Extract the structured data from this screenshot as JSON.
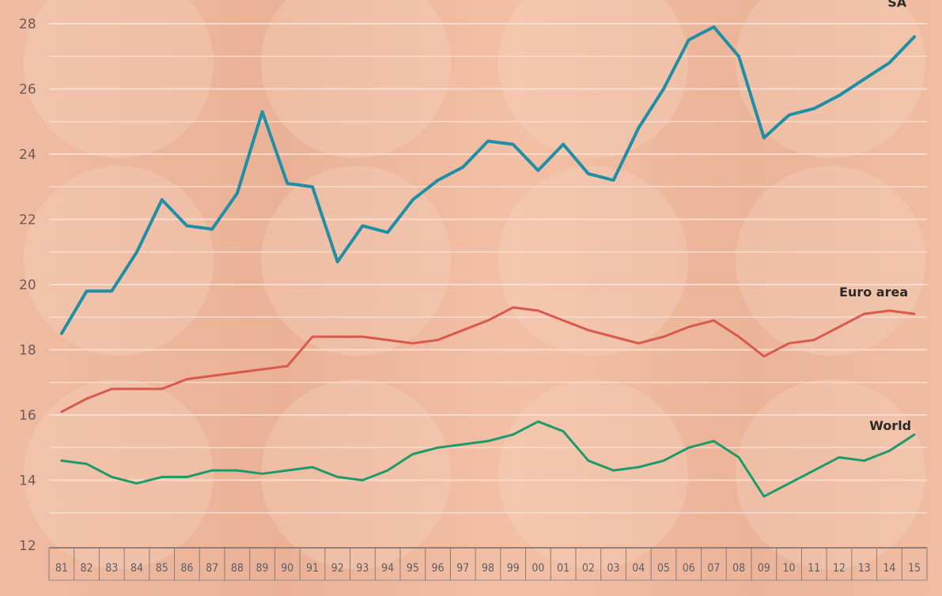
{
  "chart_data": {
    "type": "line",
    "x": [
      "81",
      "82",
      "83",
      "84",
      "85",
      "86",
      "87",
      "88",
      "89",
      "90",
      "91",
      "92",
      "93",
      "94",
      "95",
      "96",
      "97",
      "98",
      "99",
      "00",
      "01",
      "02",
      "03",
      "04",
      "05",
      "06",
      "07",
      "08",
      "09",
      "10",
      "11",
      "12",
      "13",
      "14",
      "15"
    ],
    "ylim": [
      12,
      28
    ],
    "yticks": [
      12,
      14,
      16,
      18,
      20,
      22,
      24,
      26,
      28
    ],
    "grid": true,
    "series": [
      {
        "name": "SA",
        "color": "#1f8fa6",
        "values": [
          18.5,
          19.8,
          19.8,
          21.0,
          22.6,
          21.8,
          21.7,
          22.8,
          25.3,
          23.1,
          23.0,
          20.7,
          21.8,
          21.6,
          22.6,
          23.2,
          23.6,
          24.4,
          24.3,
          23.5,
          24.3,
          23.4,
          23.2,
          24.8,
          26.0,
          27.5,
          27.9,
          27.0,
          24.5,
          25.2,
          25.4,
          25.8,
          26.3,
          26.8,
          27.6
        ]
      },
      {
        "name": "Euro area",
        "color": "#d9594c",
        "values": [
          16.1,
          16.5,
          16.8,
          16.8,
          16.8,
          17.1,
          17.2,
          17.3,
          17.4,
          17.5,
          18.4,
          18.4,
          18.4,
          18.3,
          18.2,
          18.3,
          18.6,
          18.9,
          19.3,
          19.2,
          18.9,
          18.6,
          18.4,
          18.2,
          18.4,
          18.7,
          18.9,
          18.4,
          17.8,
          18.2,
          18.3,
          18.7,
          19.1,
          19.2,
          19.1
        ]
      },
      {
        "name": "World",
        "color": "#1e9a6a",
        "values": [
          14.6,
          14.5,
          14.1,
          13.9,
          14.1,
          14.1,
          14.3,
          14.3,
          14.2,
          14.3,
          14.4,
          14.1,
          14.0,
          14.3,
          14.8,
          15.0,
          15.1,
          15.2,
          15.4,
          15.8,
          15.5,
          14.6,
          14.3,
          14.4,
          14.6,
          15.0,
          15.2,
          14.7,
          13.5,
          13.9,
          14.3,
          14.7,
          14.6,
          14.9,
          15.4
        ]
      }
    ]
  }
}
